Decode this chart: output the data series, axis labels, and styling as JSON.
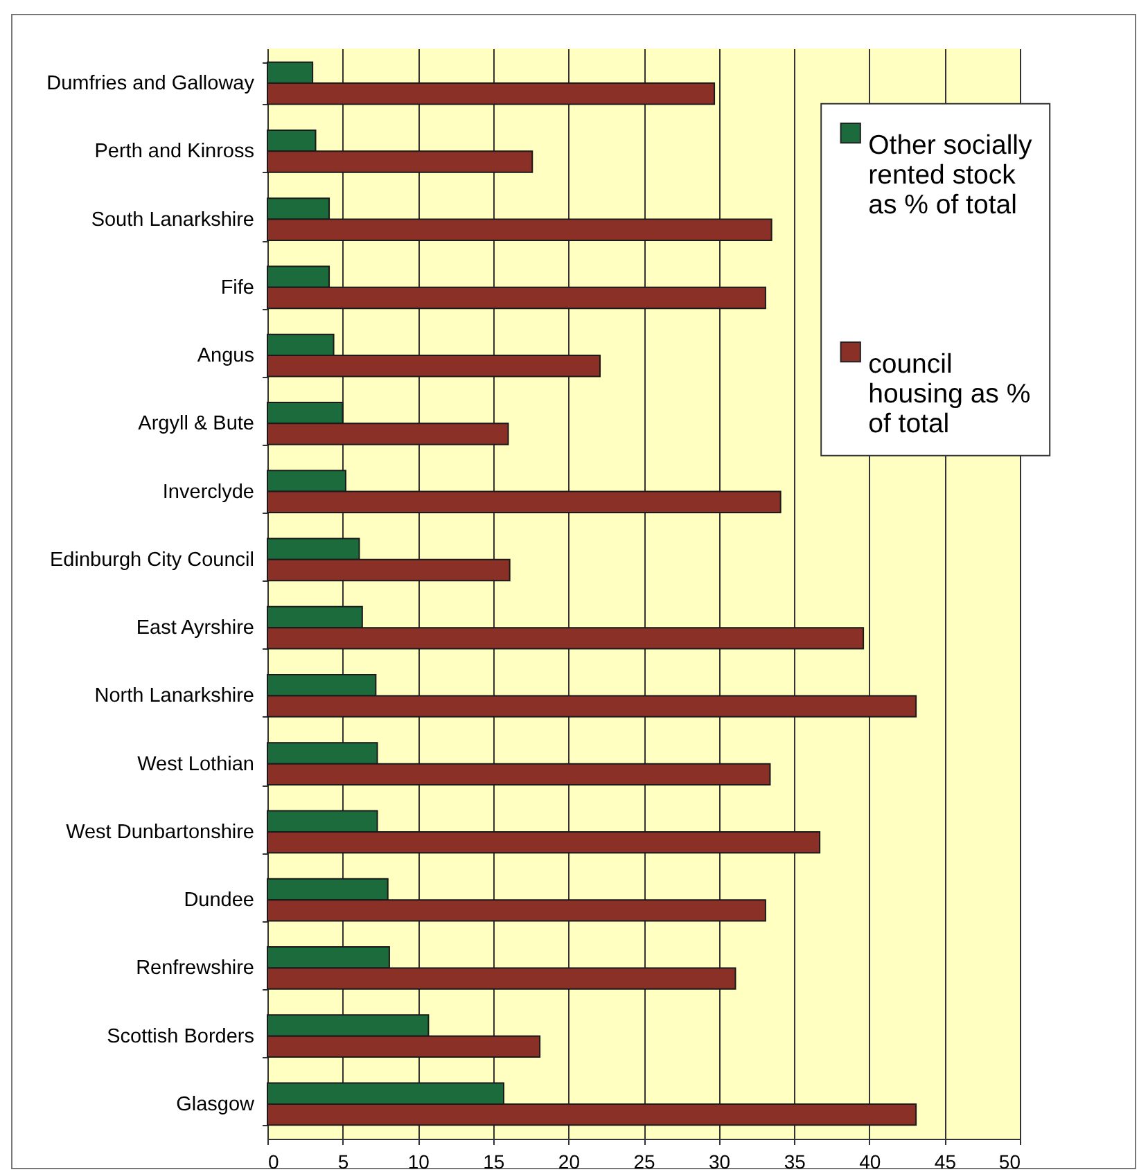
{
  "chart_data": {
    "type": "bar",
    "orientation": "horizontal",
    "categories": [
      "Dumfries and Galloway",
      "Perth and Kinross",
      "South Lanarkshire",
      "Fife",
      "Angus",
      "Argyll & Bute",
      "Inverclyde",
      "Edinburgh City Council",
      "East Ayrshire",
      "North Lanarkshire",
      "West Lothian",
      "West Dunbartonshire",
      "Dundee",
      "Renfrewshire",
      "Scottish Borders",
      "Glasgow"
    ],
    "series": [
      {
        "name": "Other socially rented stock as % of total",
        "color": "#1b6b3c",
        "values": [
          3.0,
          3.2,
          4.1,
          4.1,
          4.4,
          5.0,
          5.2,
          6.1,
          6.3,
          7.2,
          7.3,
          7.3,
          8.0,
          8.1,
          10.7,
          15.7
        ]
      },
      {
        "name": "council housing as % of total",
        "color": "#8a3027",
        "values": [
          29.7,
          17.6,
          33.5,
          33.1,
          22.1,
          16.0,
          34.1,
          16.1,
          39.6,
          43.1,
          33.4,
          36.7,
          33.1,
          31.1,
          18.1,
          43.1
        ]
      }
    ],
    "xlim": [
      0,
      50
    ],
    "xticks": [
      0,
      5,
      10,
      15,
      20,
      25,
      30,
      35,
      40,
      45,
      50
    ],
    "grid": "x",
    "legend": "top right"
  }
}
